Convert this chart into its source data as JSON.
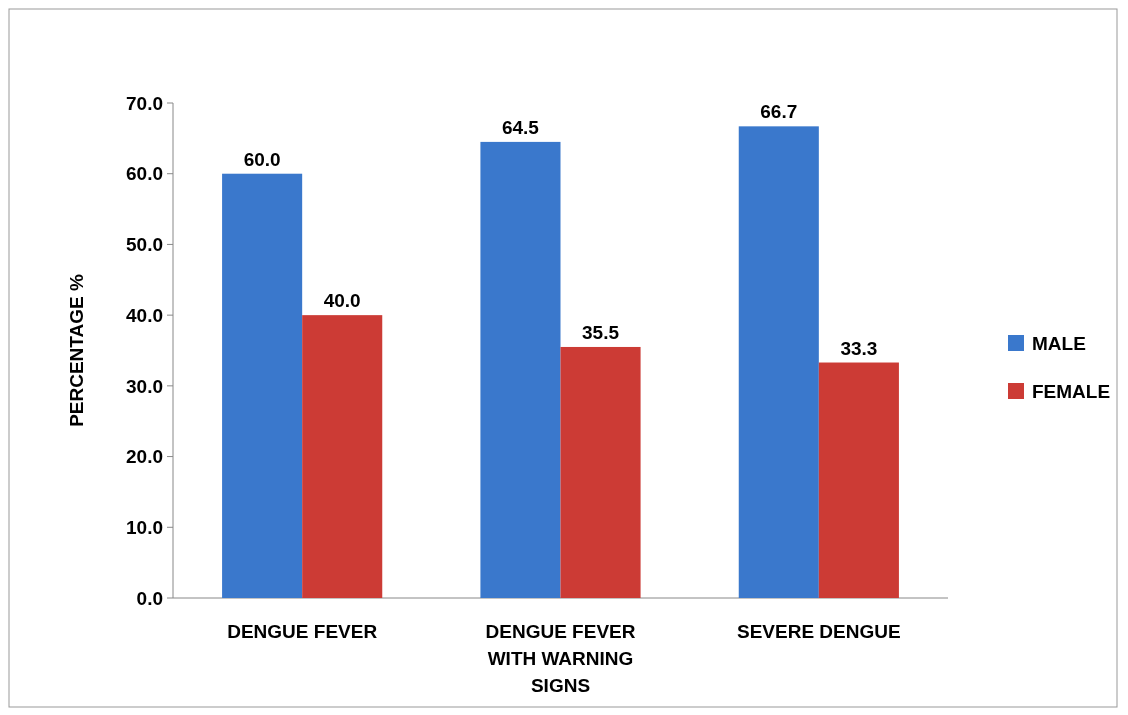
{
  "chart_data": {
    "type": "bar",
    "ylabel": "PERCENTAGE %",
    "categories": [
      "DENGUE FEVER",
      "DENGUE FEVER WITH WARNING SIGNS",
      "SEVERE DENGUE"
    ],
    "series": [
      {
        "name": "MALE",
        "color": "#3a78cc",
        "values": [
          60.0,
          64.5,
          66.7
        ],
        "value_labels": [
          "60.0",
          "64.5",
          "66.7"
        ]
      },
      {
        "name": "FEMALE",
        "color": "#cc3b35",
        "values": [
          40.0,
          35.5,
          33.3
        ],
        "value_labels": [
          "40.0",
          "35.5",
          "33.3"
        ]
      }
    ],
    "ylim": [
      0,
      70
    ],
    "yticks": [
      {
        "value": 0,
        "label": "0.0"
      },
      {
        "value": 10,
        "label": "10.0"
      },
      {
        "value": 20,
        "label": "20.0"
      },
      {
        "value": 30,
        "label": "30.0"
      },
      {
        "value": 40,
        "label": "40.0"
      },
      {
        "value": 50,
        "label": "50.0"
      },
      {
        "value": 60,
        "label": "60.0"
      },
      {
        "value": 70,
        "label": "70.0"
      }
    ],
    "legend": "right"
  }
}
